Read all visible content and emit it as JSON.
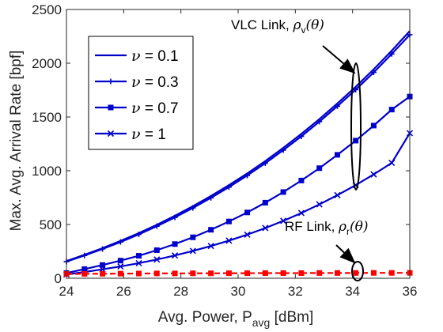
{
  "chart_data": {
    "type": "line",
    "xlabel": "Avg. Power, P",
    "xlabel_sub": "avg",
    "xlabel_unit": " [dBm]",
    "ylabel": "Max. Avg. Arrival Rate [bpf]",
    "xlim": [
      24,
      36
    ],
    "ylim": [
      0,
      2500
    ],
    "xticks": [
      24,
      26,
      28,
      30,
      32,
      34,
      36
    ],
    "yticks": [
      0,
      500,
      1000,
      1500,
      2000,
      2500
    ],
    "grid": false,
    "legend_position": "top-left",
    "x": [
      24,
      24.63,
      25.26,
      25.89,
      26.53,
      27.16,
      27.79,
      28.42,
      29.05,
      29.68,
      30.32,
      30.95,
      31.58,
      32.21,
      32.84,
      33.47,
      34.11,
      34.74,
      35.37,
      36
    ],
    "series": [
      {
        "name": "ν = 0.1",
        "marker": "none",
        "color": "#0000cc",
        "values": [
          160,
          218,
          280,
          347,
          420,
          497,
          581,
          670,
          765,
          866,
          975,
          1090,
          1213,
          1343,
          1480,
          1626,
          1781,
          1944,
          2117,
          2300
        ]
      },
      {
        "name": "ν = 0.3",
        "marker": "plus",
        "color": "#0000cc",
        "values": [
          155,
          212,
          272,
          337,
          408,
          484,
          566,
          654,
          748,
          848,
          956,
          1070,
          1192,
          1320,
          1457,
          1601,
          1754,
          1915,
          2086,
          2265
        ]
      },
      {
        "name": "ν = 0.7",
        "marker": "square",
        "color": "#0000cc",
        "values": [
          48,
          85,
          123,
          164,
          209,
          261,
          318,
          381,
          451,
          528,
          612,
          703,
          802,
          909,
          1024,
          1148,
          1280,
          1420,
          1569,
          1690
        ]
      },
      {
        "name": "ν = 1",
        "marker": "x",
        "color": "#0000cc",
        "values": [
          35,
          58,
          83,
          110,
          140,
          174,
          212,
          254,
          300,
          350,
          406,
          467,
          534,
          607,
          687,
          773,
          866,
          966,
          1073,
          1350
        ]
      },
      {
        "name": "",
        "marker": "square",
        "color": "#ff0000",
        "style": "dashed",
        "values": [
          40,
          41,
          42,
          43,
          44,
          45,
          45,
          46,
          46,
          47,
          47,
          48,
          48,
          48,
          49,
          49,
          49,
          50,
          50,
          50
        ]
      }
    ],
    "annotations": [
      {
        "text": "VLC Link, ",
        "symbol": "ρ",
        "sub": "v",
        "arg": "(θ)"
      },
      {
        "text": "RF Link, ",
        "symbol": "ρ",
        "sub": "r",
        "arg": "(θ)"
      }
    ]
  }
}
